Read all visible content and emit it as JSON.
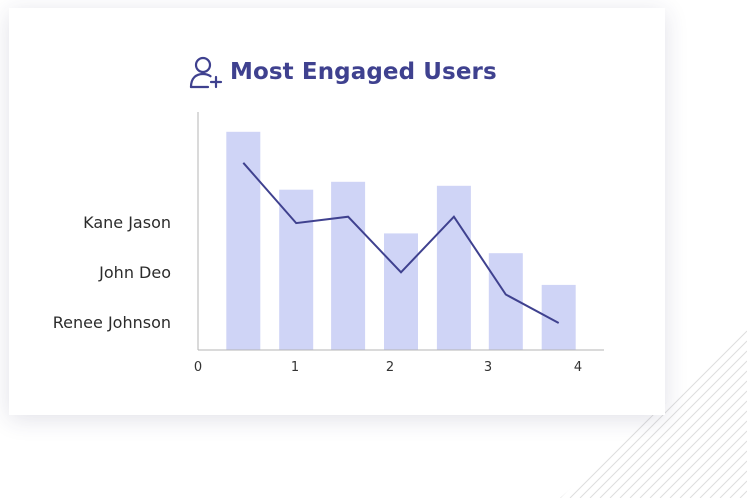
{
  "title": "Most Engaged Users",
  "icon": "add-user-icon",
  "colors": {
    "title": "#3f418f",
    "bar": "#cfd4f6",
    "line": "#3f418f",
    "axis": "#b5b5b5"
  },
  "chart_data": {
    "type": "bar",
    "title": "Most Engaged Users",
    "xlabel": "",
    "ylabel": "",
    "xlim": [
      0,
      4.3
    ],
    "ylim": [
      0,
      3
    ],
    "x_ticks": [
      0,
      1,
      2,
      3,
      4
    ],
    "y_category_labels": [
      "Kane Jason",
      "John Deo",
      "Renee Johnson"
    ],
    "bar_x": [
      0.48,
      1.04,
      1.59,
      2.15,
      2.71,
      3.26,
      3.82
    ],
    "bar_values": [
      2.75,
      2.02,
      2.12,
      1.47,
      2.07,
      1.22,
      0.82
    ],
    "line_x": [
      0.48,
      1.04,
      1.59,
      2.15,
      2.71,
      3.26,
      3.82
    ],
    "line_values": [
      2.36,
      1.6,
      1.68,
      0.98,
      1.68,
      0.7,
      0.34
    ],
    "grid": false,
    "legend": "none"
  }
}
